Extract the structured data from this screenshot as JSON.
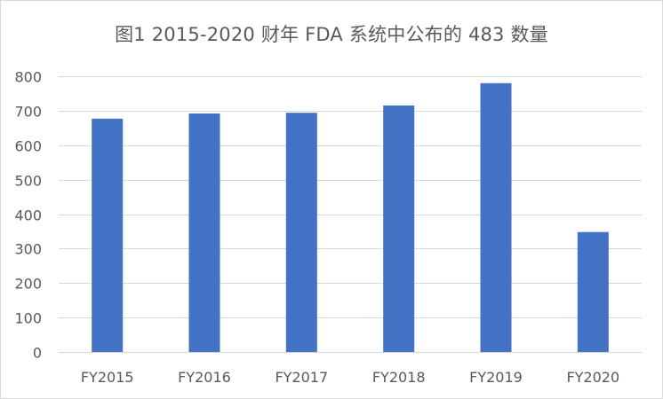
{
  "chart_data": {
    "type": "bar",
    "title": "图1 2015-2020 财年 FDA 系统中公布的 483 数量",
    "xlabel": "",
    "ylabel": "",
    "categories": [
      "FY2015",
      "FY2016",
      "FY2017",
      "FY2018",
      "FY2019",
      "FY2020"
    ],
    "values": [
      677,
      692,
      694,
      715,
      780,
      348
    ],
    "ylim": [
      0,
      800
    ],
    "yticks": [
      "0",
      "100",
      "200",
      "300",
      "400",
      "500",
      "600",
      "700",
      "800"
    ],
    "grid": true,
    "legend": "none",
    "bar_color": "#4472C4",
    "grid_color": "#D9D9D9",
    "text_color": "#595959"
  }
}
